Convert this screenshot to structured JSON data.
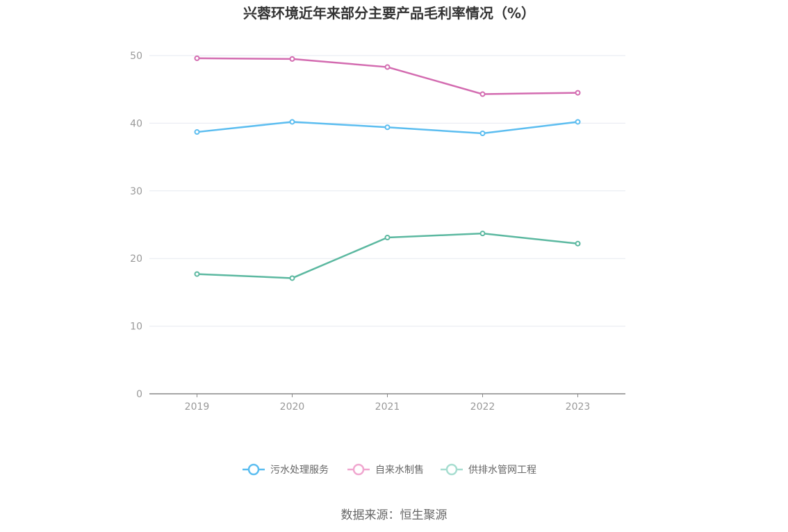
{
  "chart_data": {
    "type": "line",
    "title": "兴蓉环境近年来部分主要产品毛利率情况（%）",
    "categories": [
      "2019",
      "2020",
      "2021",
      "2022",
      "2023"
    ],
    "ylim": [
      0,
      50
    ],
    "yticks": [
      0,
      10,
      20,
      30,
      40,
      50
    ],
    "grid": true,
    "legend_position": "bottom",
    "series": [
      {
        "name": "污水处理服务",
        "color": "#5BBDF0",
        "values": [
          38.7,
          40.2,
          39.4,
          38.5,
          40.2
        ]
      },
      {
        "name": "自来水制售",
        "color": "#D36BB0",
        "values": [
          49.6,
          49.5,
          48.3,
          44.3,
          44.5
        ]
      },
      {
        "name": "供排水管网工程",
        "color": "#5BB8A0",
        "values": [
          17.7,
          17.1,
          23.1,
          23.7,
          22.2
        ]
      }
    ],
    "legend_colors": [
      "#5BBDF0",
      "#F0A6CF",
      "#A6DDD0"
    ]
  },
  "source": "数据来源：恒生聚源"
}
